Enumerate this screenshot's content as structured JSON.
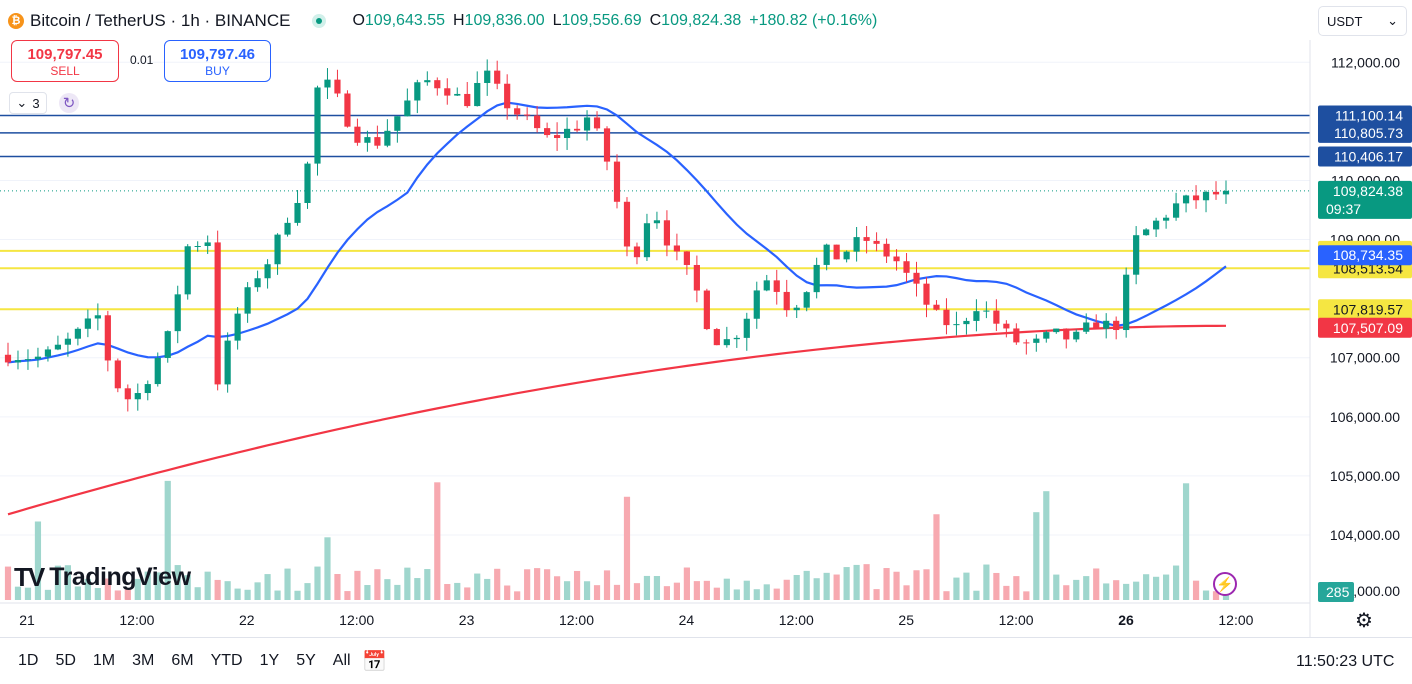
{
  "header": {
    "symbol_title": "Bitcoin / TetherUS · 1h · BINANCE",
    "ohlc": [
      {
        "label": "O",
        "value": "109,643.55"
      },
      {
        "label": "H",
        "value": "109,836.00"
      },
      {
        "label": "L",
        "value": "109,556.69"
      },
      {
        "label": "C",
        "value": "109,824.38"
      }
    ],
    "change": "+180.82 (+0.16%)",
    "coin_glyph": "₿",
    "accent_up": "#089981",
    "accent_down": "#f23645"
  },
  "trade": {
    "sell_price": "109,797.45",
    "sell_label": "SELL",
    "quantity": "0.01",
    "buy_price": "109,797.46",
    "buy_label": "BUY"
  },
  "indicators": {
    "count": "3"
  },
  "currency": {
    "selected": "USDT"
  },
  "branding": {
    "name": "TradingView"
  },
  "bottom": {
    "ranges": [
      "1D",
      "5D",
      "1M",
      "3M",
      "6M",
      "YTD",
      "1Y",
      "5Y",
      "All"
    ],
    "clock": "11:50:23 UTC"
  },
  "chart_data": {
    "type": "candlestick",
    "timeframe": "1h",
    "x_tick_labels": [
      {
        "label": "21",
        "bold": false
      },
      {
        "label": "12:00",
        "bold": false
      },
      {
        "label": "22",
        "bold": false
      },
      {
        "label": "12:00",
        "bold": false
      },
      {
        "label": "23",
        "bold": false
      },
      {
        "label": "12:00",
        "bold": false
      },
      {
        "label": "24",
        "bold": false
      },
      {
        "label": "12:00",
        "bold": false
      },
      {
        "label": "25",
        "bold": false
      },
      {
        "label": "12:00",
        "bold": false
      },
      {
        "label": "26",
        "bold": true
      },
      {
        "label": "12:00",
        "bold": false
      }
    ],
    "y_ticks": [
      "104,000.00",
      "105,000.00",
      "106,000.00",
      "107,000.00",
      "109,000.00",
      "110,000.00",
      "112,000.00"
    ],
    "y_tick_values": [
      104000,
      105000,
      106000,
      107000,
      109000,
      110000,
      112000
    ],
    "y_partial_tick": "103,000.00",
    "ylim": [
      102900,
      112800
    ],
    "horizontal_lines": [
      {
        "value": 111100.14,
        "label": "111,100.14",
        "color": "#1e4fa0"
      },
      {
        "value": 110805.73,
        "label": "110,805.73",
        "color": "#1e4fa0"
      },
      {
        "value": 110406.17,
        "label": "110,406.17",
        "color": "#1e4fa0"
      },
      {
        "value": 108807.95,
        "label": "108,807.95",
        "color": "#f5e642"
      },
      {
        "value": 108513.54,
        "label": "108,513.54",
        "color": "#f5e642"
      },
      {
        "value": 107819.57,
        "label": "107,819.57",
        "color": "#f5e642"
      }
    ],
    "current_price": {
      "value": 109824.38,
      "label": "109,824.38",
      "countdown": "09:37",
      "color": "#089981"
    },
    "ma_fast": {
      "label": "108,734.35",
      "color": "#2962ff"
    },
    "ma_slow": {
      "label": "107,507.09",
      "color": "#f23645"
    },
    "volume_label": "285",
    "colors": {
      "up": "#089981",
      "down": "#f23645",
      "vol_up": "#9fd6cd",
      "vol_down": "#f7a9b0"
    },
    "candle_count": 123
  }
}
